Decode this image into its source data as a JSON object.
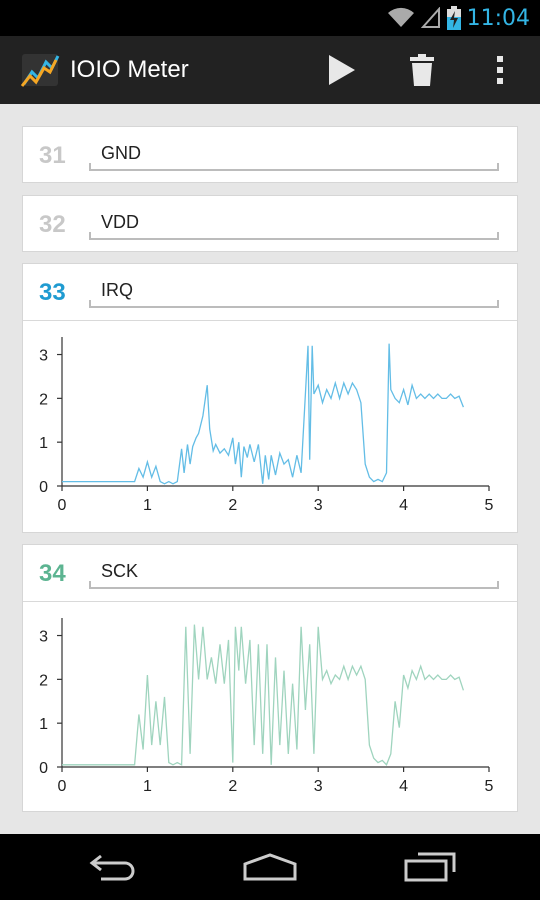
{
  "status_bar": {
    "time": "11:04",
    "icons": [
      "wifi-icon",
      "signal-icon",
      "battery-charging-icon"
    ]
  },
  "action_bar": {
    "title": "IOIO Meter",
    "icons": {
      "app": "meter-logo-icon",
      "play": "play-icon",
      "delete": "trash-icon",
      "overflow": "overflow-menu-icon"
    }
  },
  "pins": [
    {
      "number": "31",
      "name": "GND",
      "color": "#c8c8c8",
      "has_chart": false
    },
    {
      "number": "32",
      "name": "VDD",
      "color": "#c8c8c8",
      "has_chart": false
    },
    {
      "number": "33",
      "name": "IRQ",
      "color": "#1f9bd1",
      "has_chart": true
    },
    {
      "number": "34",
      "name": "SCK",
      "color": "#5cb491",
      "has_chart": true
    }
  ],
  "chart_data": [
    {
      "type": "line",
      "series": [
        {
          "name": "IRQ",
          "color": "#63bde6",
          "x": [
            0,
            0.85,
            0.9,
            0.95,
            1.0,
            1.05,
            1.1,
            1.15,
            1.2,
            1.25,
            1.3,
            1.35,
            1.4,
            1.43,
            1.47,
            1.5,
            1.53,
            1.57,
            1.6,
            1.65,
            1.7,
            1.73,
            1.77,
            1.8,
            1.85,
            1.9,
            1.95,
            2.0,
            2.03,
            2.07,
            2.1,
            2.13,
            2.17,
            2.2,
            2.25,
            2.3,
            2.35,
            2.38,
            2.42,
            2.45,
            2.5,
            2.55,
            2.6,
            2.65,
            2.7,
            2.75,
            2.8,
            2.85,
            2.88,
            2.9,
            2.93,
            2.95,
            3.0,
            3.05,
            3.1,
            3.15,
            3.2,
            3.25,
            3.3,
            3.35,
            3.4,
            3.45,
            3.5,
            3.55,
            3.6,
            3.65,
            3.7,
            3.75,
            3.8,
            3.83,
            3.85,
            3.9,
            3.95,
            4.0,
            4.05,
            4.1,
            4.15,
            4.2,
            4.25,
            4.3,
            4.35,
            4.4,
            4.45,
            4.5,
            4.55,
            4.6,
            4.65,
            4.7
          ],
          "y": [
            0.1,
            0.1,
            0.4,
            0.2,
            0.55,
            0.2,
            0.45,
            0.1,
            0.05,
            0.1,
            0.05,
            0.1,
            0.85,
            0.3,
            0.95,
            0.5,
            0.9,
            1.1,
            1.2,
            1.6,
            2.3,
            1.3,
            0.8,
            0.95,
            0.75,
            0.85,
            0.7,
            1.1,
            0.5,
            1.0,
            0.2,
            0.9,
            0.65,
            0.95,
            0.55,
            0.95,
            0.05,
            0.7,
            0.15,
            0.7,
            0.25,
            0.75,
            0.5,
            0.6,
            0.2,
            0.7,
            0.3,
            2.1,
            3.2,
            0.6,
            3.2,
            2.1,
            2.3,
            1.9,
            2.2,
            2.0,
            2.35,
            2.0,
            2.35,
            2.1,
            2.35,
            2.2,
            1.9,
            0.5,
            0.2,
            0.1,
            0.15,
            0.1,
            0.3,
            3.25,
            2.2,
            2.0,
            1.9,
            2.2,
            1.85,
            2.3,
            2.0,
            2.1,
            2.0,
            2.1,
            2.0,
            2.1,
            2.0,
            2.0,
            2.1,
            2.0,
            2.05,
            1.8
          ]
        }
      ],
      "xlim": [
        0,
        5
      ],
      "ylim": [
        0,
        3.4
      ],
      "xticks": [
        "0",
        "1",
        "2",
        "3",
        "4",
        "5"
      ],
      "yticks": [
        "0",
        "1",
        "2",
        "3"
      ]
    },
    {
      "type": "line",
      "series": [
        {
          "name": "SCK",
          "color": "#9fd4be",
          "x": [
            0,
            0.85,
            0.9,
            0.95,
            1.0,
            1.05,
            1.1,
            1.15,
            1.2,
            1.25,
            1.3,
            1.35,
            1.4,
            1.45,
            1.5,
            1.55,
            1.6,
            1.65,
            1.7,
            1.75,
            1.8,
            1.85,
            1.9,
            1.95,
            2.0,
            2.03,
            2.07,
            2.1,
            2.15,
            2.2,
            2.25,
            2.3,
            2.35,
            2.4,
            2.45,
            2.5,
            2.55,
            2.6,
            2.65,
            2.7,
            2.75,
            2.8,
            2.85,
            2.9,
            2.95,
            3.0,
            3.05,
            3.1,
            3.15,
            3.2,
            3.25,
            3.3,
            3.35,
            3.4,
            3.45,
            3.5,
            3.55,
            3.6,
            3.65,
            3.7,
            3.75,
            3.8,
            3.85,
            3.9,
            3.95,
            4.0,
            4.05,
            4.1,
            4.15,
            4.2,
            4.25,
            4.3,
            4.35,
            4.4,
            4.45,
            4.5,
            4.55,
            4.6,
            4.65,
            4.7
          ],
          "y": [
            0.05,
            0.05,
            1.2,
            0.4,
            2.1,
            0.5,
            1.5,
            0.5,
            1.6,
            0.1,
            0.05,
            0.1,
            0.05,
            3.2,
            0.3,
            3.25,
            2.0,
            3.2,
            2.0,
            2.5,
            1.9,
            2.8,
            1.9,
            2.9,
            0.1,
            3.2,
            2.2,
            3.2,
            1.9,
            2.9,
            0.5,
            2.8,
            0.3,
            2.8,
            0.05,
            2.5,
            0.5,
            2.2,
            0.3,
            1.9,
            0.4,
            3.2,
            1.3,
            2.8,
            0.3,
            3.2,
            2.0,
            2.2,
            1.9,
            2.1,
            2.0,
            2.3,
            2.0,
            2.3,
            2.1,
            2.3,
            2.0,
            0.5,
            0.2,
            0.1,
            0.15,
            0.05,
            0.3,
            1.5,
            0.9,
            2.1,
            1.8,
            2.2,
            2.0,
            2.3,
            2.0,
            2.1,
            2.0,
            2.1,
            2.0,
            2.0,
            2.1,
            2.0,
            2.05,
            1.75
          ]
        }
      ],
      "xlim": [
        0,
        5
      ],
      "ylim": [
        0,
        3.4
      ],
      "xticks": [
        "0",
        "1",
        "2",
        "3",
        "4",
        "5"
      ],
      "yticks": [
        "0",
        "1",
        "2",
        "3"
      ]
    }
  ]
}
